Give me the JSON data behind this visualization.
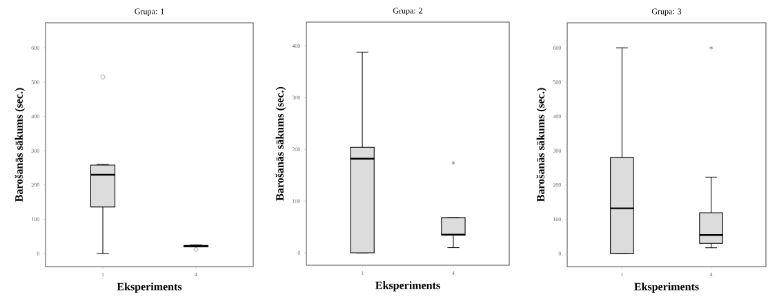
{
  "chart_data": [
    {
      "type": "box",
      "title": "Grupa: 1",
      "xlabel": "Eksperiments",
      "ylabel": "Barošanās sākums (sec.)",
      "categories": [
        "1",
        "4"
      ],
      "color": "#dcdcdc",
      "marker": "circle",
      "ylim": [
        -38,
        673
      ],
      "yticks": [
        0,
        100,
        200,
        300,
        400,
        500,
        600
      ],
      "boxes": [
        {
          "low": 0,
          "q1": 136,
          "median": 230,
          "q3": 258,
          "high": 260,
          "outliers": [
            515
          ]
        },
        {
          "low": 20,
          "q1": 20,
          "median": 22,
          "q3": 24,
          "high": 25,
          "outliers": [
            12
          ]
        }
      ]
    },
    {
      "type": "box",
      "title": "Grupa: 2",
      "xlabel": "Eksperiments",
      "ylabel": "Barošanās sākums (sec.)",
      "categories": [
        "1",
        "4"
      ],
      "color": "#dcdcdc",
      "marker": "star",
      "ylim": [
        -24,
        446
      ],
      "yticks": [
        0,
        100,
        200,
        300,
        400
      ],
      "boxes": [
        {
          "low": 0,
          "q1": 0,
          "median": 182,
          "q3": 204,
          "high": 388
        },
        {
          "low": 10,
          "q1": 34,
          "median": 35,
          "q3": 68,
          "high": 68,
          "outliers": [
            174
          ]
        }
      ]
    },
    {
      "type": "box",
      "title": "Grupa: 3",
      "xlabel": "Eksperiments",
      "ylabel": "Barošanās sākums (sec.)",
      "categories": [
        "1",
        "4"
      ],
      "color": "#dcdcdc",
      "marker": "star",
      "ylim": [
        -38,
        673
      ],
      "yticks": [
        0,
        100,
        200,
        300,
        400,
        500,
        600
      ],
      "boxes": [
        {
          "low": 0,
          "q1": 0,
          "median": 132,
          "q3": 280,
          "high": 600
        },
        {
          "low": 17,
          "q1": 30,
          "median": 54,
          "q3": 119,
          "high": 223,
          "outliers": [
            600
          ]
        }
      ]
    }
  ]
}
